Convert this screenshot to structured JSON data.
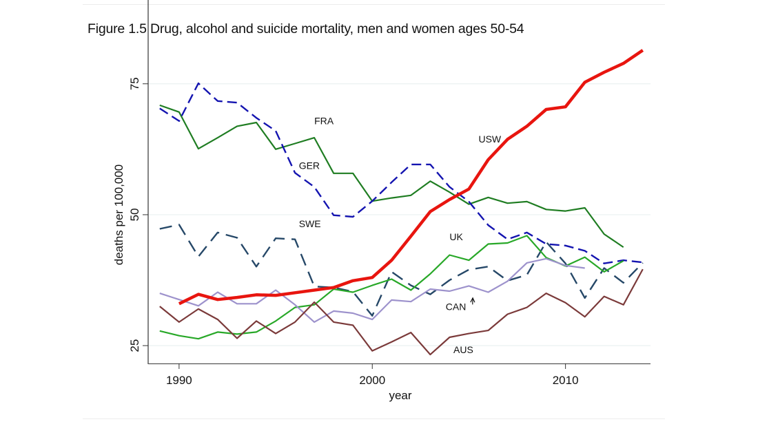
{
  "chart_data": {
    "type": "line",
    "title": "Figure 1.5  Drug, alcohol and suicide mortality, men and women ages 50-54",
    "xlabel": "year",
    "ylabel": "deaths per 100,000",
    "xlim": [
      1988.4,
      2014.4
    ],
    "ylim": [
      21.6,
      81.8
    ],
    "xticks": [
      1990,
      2000,
      2010
    ],
    "xtick_labels": [
      "1990",
      "2000",
      "2010"
    ],
    "yticks": [
      25,
      50,
      75
    ],
    "ytick_labels": [
      "25",
      "50",
      "75"
    ],
    "grid": "horizontal",
    "legend": "none (inline labels)",
    "series": [
      {
        "name": "USW",
        "label": "USW",
        "color": "#e8150f",
        "style": "solid-thick",
        "label_at": [
          2005.5,
          63.8
        ],
        "x": [
          1990,
          1991,
          1992,
          1993,
          1994,
          1995,
          1996,
          1997,
          1998,
          1999,
          2000,
          2001,
          2002,
          2003,
          2004,
          2005,
          2006,
          2007,
          2008,
          2009,
          2010,
          2011,
          2012,
          2013,
          2014
        ],
        "values": [
          33.0,
          34.8,
          33.8,
          34.2,
          34.7,
          34.6,
          35.1,
          35.6,
          36.1,
          37.4,
          38.0,
          41.3,
          45.9,
          50.6,
          52.9,
          54.9,
          60.5,
          64.4,
          66.9,
          70.1,
          70.6,
          75.3,
          77.2,
          78.9,
          81.4
        ]
      },
      {
        "name": "FRA",
        "label": "FRA",
        "color": "#1f7d22",
        "style": "solid",
        "label_at": [
          1997.0,
          67.3
        ],
        "x": [
          1989,
          1990,
          1991,
          1992,
          1993,
          1994,
          1995,
          1996,
          1997,
          1998,
          1999,
          2000,
          2001,
          2002,
          2003,
          2004,
          2005,
          2006,
          2007,
          2008,
          2009,
          2010,
          2011,
          2012,
          2013
        ],
        "values": [
          70.9,
          69.6,
          62.6,
          64.7,
          66.9,
          67.6,
          62.5,
          63.6,
          64.7,
          57.9,
          57.9,
          52.6,
          53.2,
          53.7,
          56.4,
          54.3,
          52.0,
          53.3,
          52.2,
          52.5,
          51.0,
          50.7,
          51.3,
          46.3,
          43.8
        ]
      },
      {
        "name": "GER",
        "label": "GER",
        "color": "#1414b0",
        "style": "dashed",
        "label_at": [
          1996.2,
          58.7
        ],
        "x": [
          1989,
          1990,
          1991,
          1992,
          1993,
          1994,
          1995,
          1996,
          1997,
          1998,
          1999,
          2000,
          2001,
          2002,
          2003,
          2004,
          2005,
          2006,
          2007,
          2008,
          2009,
          2010,
          2011,
          2012,
          2013,
          2014
        ],
        "values": [
          70.3,
          67.9,
          75.1,
          71.7,
          71.4,
          68.5,
          66.0,
          58.0,
          55.3,
          49.9,
          49.6,
          52.6,
          56.2,
          59.6,
          59.6,
          55.3,
          52.5,
          48.0,
          45.3,
          46.6,
          44.4,
          44.1,
          43.1,
          40.7,
          41.3,
          40.9
        ]
      },
      {
        "name": "SWE",
        "label": "SWE",
        "color": "#264868",
        "style": "longdash",
        "label_at": [
          1996.2,
          47.6
        ],
        "x": [
          1989,
          1990,
          1991,
          1992,
          1993,
          1994,
          1995,
          1996,
          1997,
          1998,
          1999,
          2000,
          2001,
          2002,
          2003,
          2004,
          2005,
          2006,
          2007,
          2008,
          2009,
          2010,
          2011,
          2012,
          2013,
          2014
        ],
        "values": [
          47.3,
          48.1,
          42.0,
          46.6,
          45.6,
          40.1,
          45.5,
          45.3,
          36.3,
          36.1,
          35.3,
          30.7,
          39.1,
          36.5,
          34.8,
          37.5,
          39.5,
          40.1,
          37.4,
          38.5,
          44.8,
          40.7,
          34.1,
          39.8,
          37.0,
          40.8
        ]
      },
      {
        "name": "UK",
        "label": "UK",
        "color": "#28a828",
        "style": "solid",
        "label_at": [
          2004.0,
          45.1
        ],
        "x": [
          1989,
          1990,
          1991,
          1992,
          1993,
          1994,
          1995,
          1996,
          1997,
          1998,
          1999,
          2000,
          2001,
          2002,
          2003,
          2004,
          2005,
          2006,
          2007,
          2008,
          2009,
          2010,
          2011,
          2012,
          2013
        ],
        "values": [
          27.8,
          26.9,
          26.3,
          27.6,
          27.2,
          27.6,
          29.7,
          32.3,
          32.8,
          35.8,
          35.2,
          36.5,
          37.7,
          35.6,
          38.7,
          42.3,
          41.3,
          44.4,
          44.6,
          46.0,
          41.8,
          40.2,
          41.9,
          39.1,
          41.2
        ]
      },
      {
        "name": "CAN",
        "label": "CAN",
        "color": "#9d92cc",
        "style": "solid",
        "label_at": [
          2003.8,
          31.8
        ],
        "arrow_to": [
          2005.2,
          34.1
        ],
        "x": [
          1989,
          1990,
          1991,
          1992,
          1993,
          1994,
          1995,
          1996,
          1997,
          1998,
          1999,
          2000,
          2001,
          2002,
          2003,
          2004,
          2005,
          2006,
          2007,
          2008,
          2009,
          2010,
          2011
        ],
        "values": [
          35.0,
          33.8,
          32.6,
          35.2,
          33.0,
          33.0,
          35.6,
          32.8,
          29.5,
          31.6,
          31.2,
          30.0,
          33.7,
          33.4,
          35.8,
          35.4,
          36.4,
          35.2,
          37.3,
          40.8,
          41.6,
          40.3,
          39.8
        ]
      },
      {
        "name": "AUS",
        "label": "AUS",
        "color": "#7b3a3a",
        "style": "solid",
        "label_at": [
          2004.2,
          23.6
        ],
        "x": [
          1989,
          1990,
          1991,
          1992,
          1993,
          1994,
          1995,
          1996,
          1997,
          1998,
          1999,
          2000,
          2001,
          2002,
          2003,
          2004,
          2005,
          2006,
          2007,
          2008,
          2009,
          2010,
          2011,
          2012,
          2013,
          2014
        ],
        "values": [
          32.5,
          29.5,
          32.0,
          30.0,
          26.4,
          29.7,
          27.3,
          29.5,
          33.3,
          29.5,
          28.9,
          24.0,
          25.7,
          27.5,
          23.3,
          26.6,
          27.3,
          27.9,
          31.0,
          32.3,
          35.0,
          33.2,
          30.5,
          34.4,
          32.8,
          39.6
        ]
      }
    ]
  }
}
